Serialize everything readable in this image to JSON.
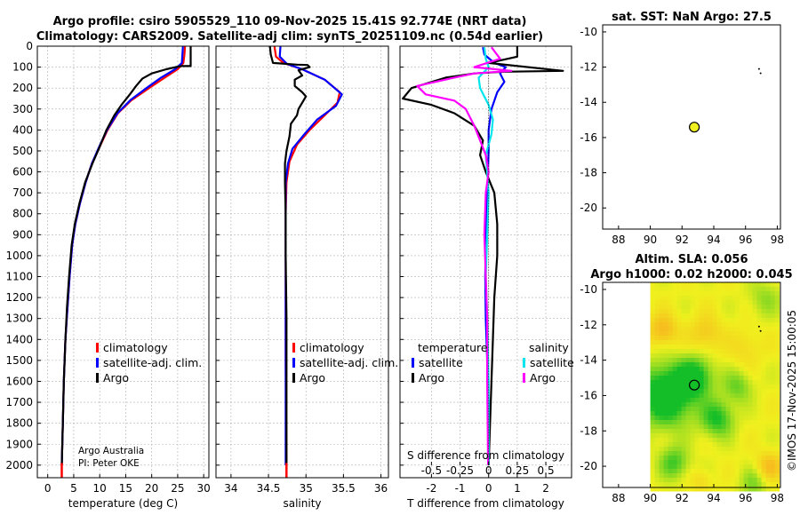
{
  "header": {
    "line1": "Argo profile: csiro 5905529_110 09-Nov-2025 15.41S 92.774E (NRT data)",
    "line2": "Climatology: CARS2009. Satellite-adj clim: synTS_20251109.nc (0.54d earlier)"
  },
  "credits": {
    "org": "Argo Australia",
    "pi": "PI: Peter OKE"
  },
  "watermark": "©IMOS 17-Nov-2025 15:00:05",
  "colors": {
    "climatology": "#ff0000",
    "satellite": "#0000ff",
    "argo": "#000000",
    "sal_satellite": "#00e5ee",
    "sal_argo": "#ff00ff",
    "grid": "#b0b0b0"
  },
  "chart_data": [
    {
      "id": "temperature",
      "type": "line",
      "xlabel": "temperature (deg C)",
      "ylabel": "",
      "xlim": [
        -2,
        31
      ],
      "ylim": [
        2060,
        0
      ],
      "xticks": [
        0,
        5,
        10,
        15,
        20,
        25,
        30
      ],
      "yticks": [
        0,
        100,
        200,
        300,
        400,
        500,
        600,
        700,
        800,
        900,
        1000,
        1100,
        1200,
        1300,
        1400,
        1500,
        1600,
        1700,
        1800,
        1900,
        2000
      ],
      "legend": [
        "climatology",
        "satellite-adj. clim.",
        "Argo"
      ],
      "series": [
        {
          "name": "climatology",
          "color": "#ff0000",
          "points": [
            [
              26.4,
              2
            ],
            [
              26.3,
              40
            ],
            [
              26.1,
              80
            ],
            [
              25.0,
              110
            ],
            [
              22.5,
              150
            ],
            [
              19.5,
              200
            ],
            [
              16.0,
              260
            ],
            [
              13.5,
              320
            ],
            [
              11.5,
              400
            ],
            [
              10.0,
              480
            ],
            [
              8.5,
              560
            ],
            [
              7.3,
              650
            ],
            [
              6.2,
              750
            ],
            [
              5.3,
              850
            ],
            [
              4.7,
              950
            ],
            [
              4.2,
              1100
            ],
            [
              3.8,
              1250
            ],
            [
              3.4,
              1400
            ],
            [
              3.1,
              1600
            ],
            [
              2.9,
              1800
            ],
            [
              2.7,
              2000
            ]
          ]
        },
        {
          "name": "satellite-adj. clim.",
          "color": "#0000ff",
          "points": [
            [
              26.0,
              2
            ],
            [
              25.9,
              40
            ],
            [
              25.8,
              80
            ],
            [
              24.5,
              110
            ],
            [
              21.8,
              150
            ],
            [
              19.0,
              200
            ],
            [
              16.0,
              255
            ],
            [
              13.4,
              320
            ],
            [
              11.4,
              400
            ],
            [
              9.9,
              480
            ],
            [
              8.5,
              560
            ],
            [
              7.3,
              650
            ],
            [
              6.2,
              750
            ],
            [
              5.3,
              850
            ],
            [
              4.7,
              950
            ],
            [
              4.2,
              1100
            ],
            [
              3.8,
              1250
            ],
            [
              3.4,
              1400
            ],
            [
              3.1,
              1600
            ],
            [
              2.9,
              1800
            ],
            [
              2.7,
              2000
            ]
          ]
        },
        {
          "name": "Argo",
          "color": "#000000",
          "points": [
            [
              27.5,
              2
            ],
            [
              27.5,
              95
            ],
            [
              25.8,
              95
            ],
            [
              25.0,
              98
            ],
            [
              22.8,
              110
            ],
            [
              20.0,
              130
            ],
            [
              18.2,
              155
            ],
            [
              17.0,
              190
            ],
            [
              15.8,
              230
            ],
            [
              14.2,
              280
            ],
            [
              12.8,
              330
            ],
            [
              11.3,
              400
            ],
            [
              10.0,
              480
            ],
            [
              8.6,
              560
            ],
            [
              7.2,
              650
            ],
            [
              6.1,
              750
            ],
            [
              5.2,
              850
            ],
            [
              4.6,
              950
            ],
            [
              4.1,
              1100
            ],
            [
              3.7,
              1250
            ],
            [
              3.4,
              1400
            ],
            [
              3.1,
              1600
            ],
            [
              2.9,
              1800
            ],
            [
              2.7,
              2000
            ]
          ]
        }
      ]
    },
    {
      "id": "salinity",
      "type": "line",
      "xlabel": "salinity",
      "xlim": [
        33.8,
        36.1
      ],
      "ylim": [
        2060,
        0
      ],
      "xticks": [
        34,
        34.5,
        35,
        35.5,
        36
      ],
      "legend": [
        "climatology",
        "satellite-adj. clim.",
        "Argo"
      ],
      "series": [
        {
          "name": "climatology",
          "color": "#ff0000",
          "points": [
            [
              34.58,
              2
            ],
            [
              34.6,
              50
            ],
            [
              34.7,
              80
            ],
            [
              34.95,
              110
            ],
            [
              35.25,
              160
            ],
            [
              35.45,
              220
            ],
            [
              35.42,
              270
            ],
            [
              35.25,
              330
            ],
            [
              35.05,
              400
            ],
            [
              34.88,
              470
            ],
            [
              34.78,
              550
            ],
            [
              34.74,
              650
            ],
            [
              34.73,
              800
            ],
            [
              34.73,
              1000
            ],
            [
              34.73,
              1500
            ],
            [
              34.74,
              2000
            ]
          ]
        },
        {
          "name": "satellite-adj. clim.",
          "color": "#0000ff",
          "points": [
            [
              34.66,
              2
            ],
            [
              34.65,
              50
            ],
            [
              34.75,
              85
            ],
            [
              34.95,
              110
            ],
            [
              35.25,
              160
            ],
            [
              35.48,
              230
            ],
            [
              35.4,
              285
            ],
            [
              35.15,
              350
            ],
            [
              34.98,
              420
            ],
            [
              34.82,
              490
            ],
            [
              34.76,
              560
            ],
            [
              34.73,
              650
            ],
            [
              34.73,
              800
            ],
            [
              34.73,
              1000
            ],
            [
              34.73,
              1500
            ],
            [
              34.73,
              2000
            ]
          ]
        },
        {
          "name": "Argo",
          "color": "#000000",
          "points": [
            [
              34.52,
              2
            ],
            [
              34.53,
              40
            ],
            [
              34.56,
              80
            ],
            [
              34.88,
              88
            ],
            [
              35.02,
              90
            ],
            [
              35.05,
              100
            ],
            [
              34.9,
              115
            ],
            [
              34.95,
              140
            ],
            [
              34.85,
              160
            ],
            [
              34.85,
              190
            ],
            [
              34.95,
              220
            ],
            [
              35.0,
              240
            ],
            [
              34.95,
              270
            ],
            [
              34.9,
              300
            ],
            [
              34.88,
              330
            ],
            [
              34.8,
              370
            ],
            [
              34.78,
              430
            ],
            [
              34.74,
              500
            ],
            [
              34.72,
              560
            ],
            [
              34.72,
              650
            ],
            [
              34.73,
              800
            ],
            [
              34.73,
              1000
            ],
            [
              34.74,
              1300
            ],
            [
              34.74,
              1600
            ],
            [
              34.74,
              2000
            ]
          ]
        }
      ]
    },
    {
      "id": "difference",
      "type": "line",
      "xlabel": "T difference from climatology",
      "xlabel_top": "S difference from climatology",
      "xlim": [
        -3.1,
        2.9
      ],
      "ylim": [
        2060,
        0
      ],
      "xticks": [
        -2,
        -1,
        0,
        1,
        2
      ],
      "sticks": [
        -0.5,
        -0.25,
        0,
        0.25,
        0.5
      ],
      "stick_labels": [
        "-0.5",
        "-0.25",
        "0",
        "0.25",
        "0.5"
      ],
      "legend_headers": [
        "temperature",
        "salinity"
      ],
      "legend_left": [
        "satellite",
        "Argo"
      ],
      "legend_right": [
        "satellite",
        "Argo"
      ],
      "series": [
        {
          "name": "T satellite",
          "color": "#0000ff",
          "points": [
            [
              -0.2,
              5
            ],
            [
              -0.15,
              40
            ],
            [
              0.2,
              80
            ],
            [
              0.6,
              100
            ],
            [
              0.4,
              130
            ],
            [
              0.55,
              170
            ],
            [
              0.3,
              220
            ],
            [
              0.1,
              300
            ],
            [
              0.0,
              400
            ],
            [
              0.0,
              500
            ],
            [
              -0.05,
              700
            ],
            [
              -0.1,
              900
            ],
            [
              -0.12,
              1100
            ],
            [
              -0.1,
              1300
            ],
            [
              -0.05,
              1500
            ],
            [
              0.0,
              1700
            ],
            [
              0.0,
              2000
            ]
          ]
        },
        {
          "name": "T Argo",
          "color": "#000000",
          "points": [
            [
              1.0,
              2
            ],
            [
              1.0,
              50
            ],
            [
              0.0,
              80
            ],
            [
              2.6,
              118
            ],
            [
              0.5,
              122
            ],
            [
              -0.5,
              130
            ],
            [
              -1.5,
              150
            ],
            [
              -2.7,
              200
            ],
            [
              -3.0,
              250
            ],
            [
              -2.0,
              280
            ],
            [
              -1.2,
              320
            ],
            [
              -0.5,
              380
            ],
            [
              -0.2,
              450
            ],
            [
              -0.3,
              520
            ],
            [
              -0.1,
              600
            ],
            [
              0.2,
              700
            ],
            [
              0.3,
              850
            ],
            [
              0.3,
              1000
            ],
            [
              0.2,
              1200
            ],
            [
              0.15,
              1400
            ],
            [
              0.1,
              1600
            ],
            [
              0.05,
              1800
            ],
            [
              0.0,
              2000
            ]
          ]
        },
        {
          "name": "S satellite",
          "color": "#00e5ee",
          "points": [
            [
              -0.15,
              5
            ],
            [
              -0.1,
              60
            ],
            [
              0.0,
              100
            ],
            [
              -0.35,
              150
            ],
            [
              -0.3,
              200
            ],
            [
              0.0,
              280
            ],
            [
              0.15,
              350
            ],
            [
              0.1,
              420
            ],
            [
              -0.1,
              520
            ],
            [
              -0.05,
              600
            ],
            [
              0.0,
              700
            ],
            [
              -0.05,
              900
            ],
            [
              -0.1,
              1100
            ],
            [
              -0.05,
              1300
            ],
            [
              0.0,
              1600
            ],
            [
              0.0,
              2000
            ]
          ]
        },
        {
          "name": "S Argo",
          "color": "#ff00ff",
          "points": [
            [
              0.1,
              5
            ],
            [
              0.4,
              60
            ],
            [
              -0.5,
              100
            ],
            [
              0.8,
              118
            ],
            [
              -0.5,
              130
            ],
            [
              -1.2,
              150
            ],
            [
              -2.5,
              190
            ],
            [
              -2.2,
              230
            ],
            [
              -1.2,
              260
            ],
            [
              -0.8,
              300
            ],
            [
              -0.5,
              380
            ],
            [
              -0.3,
              450
            ],
            [
              -0.1,
              520
            ],
            [
              0.0,
              600
            ],
            [
              -0.1,
              700
            ],
            [
              -0.15,
              900
            ],
            [
              -0.1,
              1100
            ],
            [
              -0.05,
              1300
            ],
            [
              -0.05,
              1600
            ],
            [
              -0.02,
              2000
            ]
          ]
        }
      ]
    },
    {
      "id": "sst",
      "type": "scatter",
      "title": "sat. SST: NaN Argo: 27.5",
      "xlim": [
        87,
        98.2
      ],
      "ylim": [
        -21.2,
        -9.6
      ],
      "xticks": [
        88,
        90,
        92,
        94,
        96,
        98
      ],
      "yticks": [
        -10,
        -12,
        -14,
        -16,
        -18,
        -20
      ],
      "point": {
        "lon": 92.774,
        "lat": -15.41,
        "color": "#f0f020"
      }
    },
    {
      "id": "sla",
      "type": "heatmap",
      "title_line1": "Altim. SLA: 0.056",
      "title_line2": "Argo h1000: 0.02 h2000: 0.045",
      "xlim": [
        87,
        98.2
      ],
      "ylim": [
        -21.2,
        -9.6
      ],
      "xticks": [
        88,
        90,
        92,
        94,
        96,
        98
      ],
      "yticks": [
        -10,
        -12,
        -14,
        -16,
        -18,
        -20
      ],
      "field_extent": {
        "lon": [
          90,
          98
        ],
        "lat": [
          -21.2,
          -9.6
        ]
      },
      "point": {
        "lon": 92.774,
        "lat": -15.41
      }
    }
  ]
}
